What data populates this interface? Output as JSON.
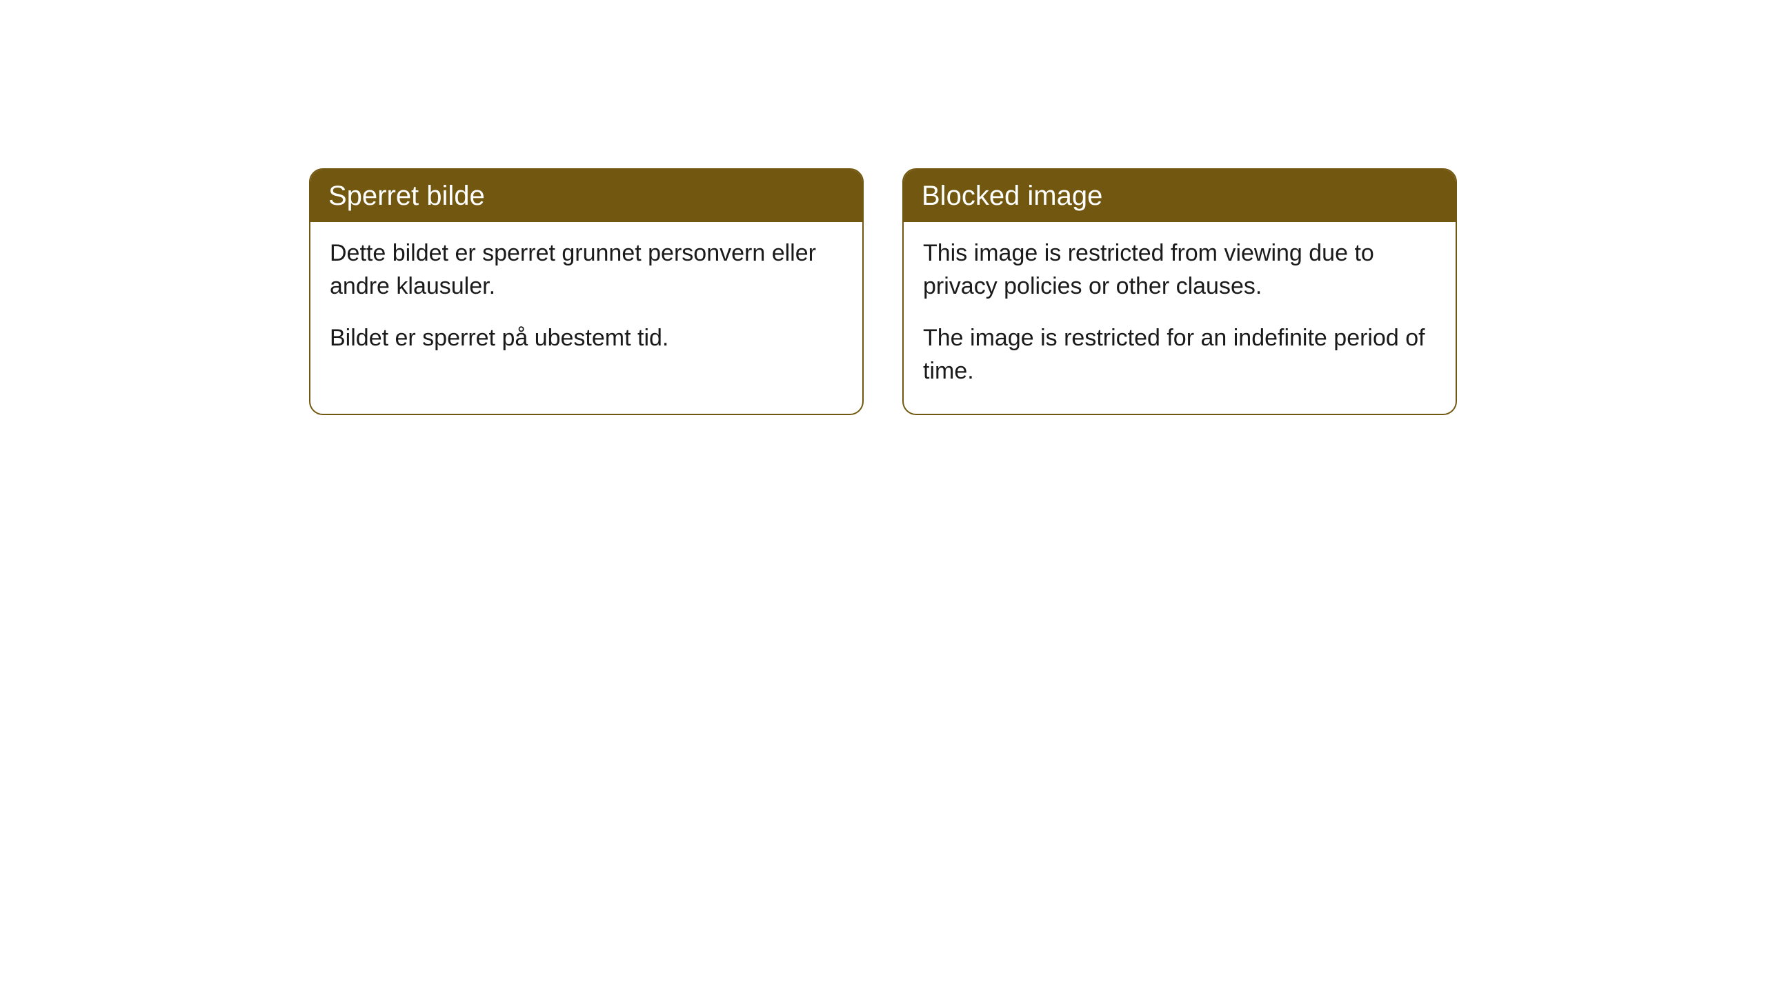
{
  "cards": [
    {
      "title": "Sperret bilde",
      "paragraph1": "Dette bildet er sperret grunnet personvern eller andre klausuler.",
      "paragraph2": "Bildet er sperret på ubestemt tid."
    },
    {
      "title": "Blocked image",
      "paragraph1": "This image is restricted from viewing due to privacy policies or other clauses.",
      "paragraph2": "The image is restricted for an indefinite period of time."
    }
  ],
  "style": {
    "header_bg_color": "#725710",
    "header_text_color": "#ffffff",
    "border_color": "#725710",
    "body_bg_color": "#ffffff",
    "body_text_color": "#1a1a1a",
    "border_radius": 20,
    "header_fontsize": 40,
    "body_fontsize": 34
  }
}
